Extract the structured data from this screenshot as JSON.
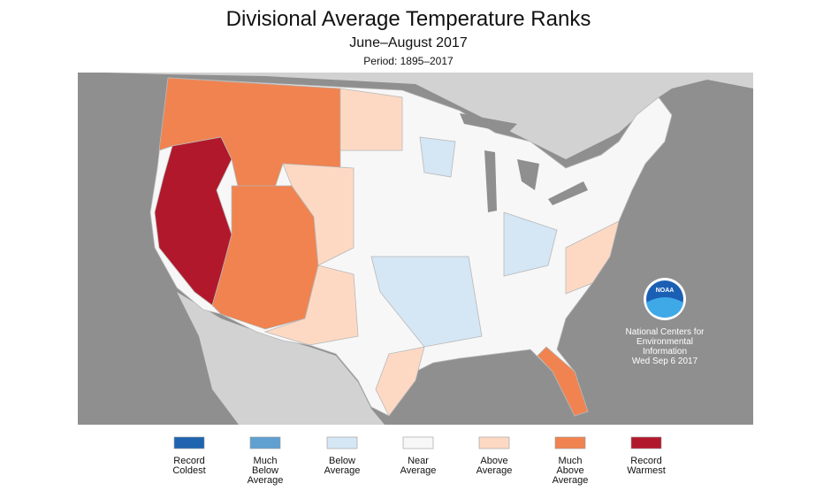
{
  "header": {
    "title": "Divisional Average Temperature Ranks",
    "subtitle": "June–August 2017",
    "period": "Period: 1895–2017"
  },
  "legend": [
    {
      "label": [
        "Record",
        "Coldest"
      ],
      "color": "#1f64b0"
    },
    {
      "label": [
        "Much",
        "Below",
        "Average"
      ],
      "color": "#5fa0d0"
    },
    {
      "label": [
        "Below",
        "Average"
      ],
      "color": "#d5e6f4"
    },
    {
      "label": [
        "Near",
        "Average"
      ],
      "color": "#f7f7f7"
    },
    {
      "label": [
        "Above",
        "Average"
      ],
      "color": "#fdd9c4"
    },
    {
      "label": [
        "Much",
        "Above",
        "Average"
      ],
      "color": "#f0834f"
    },
    {
      "label": [
        "Record",
        "Warmest"
      ],
      "color": "#b2182b"
    }
  ],
  "branding": {
    "logo": "NOAA",
    "lines": [
      "National Centers for",
      "Environmental",
      "Information"
    ],
    "date": "Wed Sep  6 2017"
  }
}
